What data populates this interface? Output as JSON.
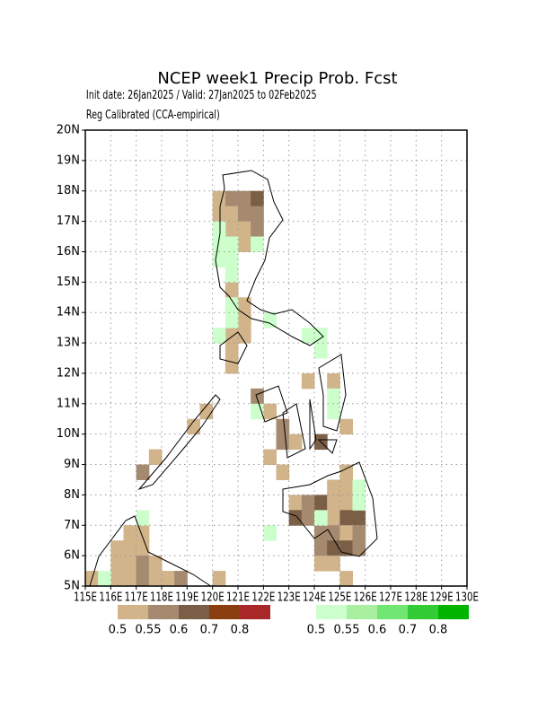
{
  "chart_data": {
    "type": "gridmap",
    "title": "NCEP week1 Precip Prob. Fcst",
    "subtitle": "Init date: 26Jan2025 / Valid: 27Jan2025 to 02Feb2025",
    "subtitle2": "Reg Calibrated (CCA-empirical)",
    "xlim": [
      115,
      130
    ],
    "ylim": [
      5,
      20
    ],
    "grid": true,
    "xticks": [
      {
        "value": 115,
        "label": "115E"
      },
      {
        "value": 116,
        "label": "116E"
      },
      {
        "value": 117,
        "label": "117E"
      },
      {
        "value": 118,
        "label": "118E"
      },
      {
        "value": 119,
        "label": "119E"
      },
      {
        "value": 120,
        "label": "120E"
      },
      {
        "value": 121,
        "label": "121E"
      },
      {
        "value": 122,
        "label": "122E"
      },
      {
        "value": 123,
        "label": "123E"
      },
      {
        "value": 124,
        "label": "124E"
      },
      {
        "value": 125,
        "label": "125E"
      },
      {
        "value": 126,
        "label": "126E"
      },
      {
        "value": 127,
        "label": "127E"
      },
      {
        "value": 128,
        "label": "128E"
      },
      {
        "value": 129,
        "label": "129E"
      },
      {
        "value": 130,
        "label": "130E"
      }
    ],
    "yticks": [
      {
        "value": 5,
        "label": "5N"
      },
      {
        "value": 6,
        "label": "6N"
      },
      {
        "value": 7,
        "label": "7N"
      },
      {
        "value": 8,
        "label": "8N"
      },
      {
        "value": 9,
        "label": "9N"
      },
      {
        "value": 10,
        "label": "10N"
      },
      {
        "value": 11,
        "label": "11N"
      },
      {
        "value": 12,
        "label": "12N"
      },
      {
        "value": 13,
        "label": "13N"
      },
      {
        "value": 14,
        "label": "14N"
      },
      {
        "value": 15,
        "label": "15N"
      },
      {
        "value": 16,
        "label": "16N"
      },
      {
        "value": 17,
        "label": "17N"
      },
      {
        "value": 18,
        "label": "18N"
      },
      {
        "value": 19,
        "label": "19N"
      },
      {
        "value": 20,
        "label": "20N"
      }
    ],
    "dry_colorbar": {
      "colors": [
        "#d2b48a",
        "#a58a70",
        "#7b5e46",
        "#8b3f10",
        "#a8282a"
      ],
      "labels": [
        0.5,
        0.55,
        0.6,
        0.7,
        0.8
      ]
    },
    "wet_colorbar": {
      "colors": [
        "#ccffcc",
        "#a8f0a0",
        "#72e672",
        "#34cc34",
        "#00b400"
      ],
      "labels": [
        0.5,
        0.55,
        0.6,
        0.7,
        0.8
      ]
    },
    "dry_cells": [
      [
        120.25,
        17.75,
        0.5
      ],
      [
        120.75,
        17.75,
        0.55
      ],
      [
        121.25,
        17.75,
        0.55
      ],
      [
        121.75,
        17.75,
        0.6
      ],
      [
        120.25,
        17.25,
        0.5
      ],
      [
        120.75,
        17.25,
        0.5
      ],
      [
        121.25,
        17.25,
        0.55
      ],
      [
        121.75,
        17.25,
        0.55
      ],
      [
        120.75,
        16.75,
        0.5
      ],
      [
        121.25,
        16.75,
        0.5
      ],
      [
        121.75,
        16.75,
        0.55
      ],
      [
        121.25,
        16.25,
        0.5
      ],
      [
        120.75,
        14.75,
        0.5
      ],
      [
        121.25,
        14.25,
        0.5
      ],
      [
        121.25,
        13.75,
        0.5
      ],
      [
        120.75,
        13.25,
        0.5
      ],
      [
        121.25,
        13.25,
        0.5
      ],
      [
        120.75,
        12.75,
        0.5
      ],
      [
        120.75,
        12.25,
        0.5
      ],
      [
        123.75,
        11.75,
        0.5
      ],
      [
        124.75,
        11.75,
        0.5
      ],
      [
        121.75,
        11.25,
        0.55
      ],
      [
        122.25,
        10.75,
        0.5
      ],
      [
        122.75,
        10.25,
        0.55
      ],
      [
        125.25,
        10.25,
        0.5
      ],
      [
        122.75,
        9.75,
        0.55
      ],
      [
        123.25,
        9.75,
        0.5
      ],
      [
        124.25,
        9.75,
        0.6
      ],
      [
        122.25,
        9.25,
        0.5
      ],
      [
        122.75,
        8.75,
        0.5
      ],
      [
        125.25,
        8.75,
        0.5
      ],
      [
        124.75,
        8.25,
        0.5
      ],
      [
        125.25,
        8.25,
        0.5
      ],
      [
        123.25,
        7.75,
        0.5
      ],
      [
        123.75,
        7.75,
        0.55
      ],
      [
        124.25,
        7.75,
        0.6
      ],
      [
        124.75,
        7.75,
        0.5
      ],
      [
        125.25,
        7.75,
        0.5
      ],
      [
        123.25,
        7.25,
        0.6
      ],
      [
        123.75,
        7.25,
        0.55
      ],
      [
        124.75,
        7.25,
        0.5
      ],
      [
        125.25,
        7.25,
        0.6
      ],
      [
        125.75,
        7.25,
        0.6
      ],
      [
        124.25,
        6.75,
        0.55
      ],
      [
        124.75,
        6.75,
        0.55
      ],
      [
        125.25,
        6.75,
        0.5
      ],
      [
        125.75,
        6.75,
        0.55
      ],
      [
        124.25,
        6.25,
        0.55
      ],
      [
        124.75,
        6.25,
        0.6
      ],
      [
        125.25,
        6.25,
        0.6
      ],
      [
        125.75,
        6.25,
        0.55
      ],
      [
        124.25,
        5.75,
        0.5
      ],
      [
        124.75,
        5.75,
        0.5
      ],
      [
        125.25,
        5.25,
        0.5
      ],
      [
        117.75,
        9.25,
        0.5
      ],
      [
        117.25,
        8.75,
        0.55
      ],
      [
        119.25,
        10.25,
        0.5
      ],
      [
        119.75,
        10.75,
        0.5
      ],
      [
        116.75,
        6.75,
        0.5
      ],
      [
        117.25,
        6.75,
        0.5
      ],
      [
        116.25,
        6.25,
        0.5
      ],
      [
        116.75,
        6.25,
        0.5
      ],
      [
        117.25,
        6.25,
        0.5
      ],
      [
        116.25,
        5.75,
        0.5
      ],
      [
        116.75,
        5.75,
        0.5
      ],
      [
        117.25,
        5.75,
        0.55
      ],
      [
        117.75,
        5.75,
        0.5
      ],
      [
        115.25,
        5.25,
        0.5
      ],
      [
        116.25,
        5.25,
        0.5
      ],
      [
        116.75,
        5.25,
        0.5
      ],
      [
        117.25,
        5.25,
        0.55
      ],
      [
        117.75,
        5.25,
        0.5
      ],
      [
        118.25,
        5.25,
        0.5
      ],
      [
        118.75,
        5.25,
        0.55
      ],
      [
        120.25,
        5.25,
        0.5
      ]
    ],
    "wet_cells": [
      [
        120.25,
        16.75,
        0.5
      ],
      [
        120.25,
        16.25,
        0.5
      ],
      [
        120.75,
        16.25,
        0.5
      ],
      [
        121.75,
        16.25,
        0.5
      ],
      [
        120.25,
        15.75,
        0.5
      ],
      [
        120.75,
        15.75,
        0.5
      ],
      [
        120.75,
        15.25,
        0.5
      ],
      [
        120.75,
        14.25,
        0.5
      ],
      [
        120.75,
        13.75,
        0.5
      ],
      [
        122.25,
        13.75,
        0.5
      ],
      [
        120.25,
        13.25,
        0.5
      ],
      [
        123.75,
        13.25,
        0.5
      ],
      [
        124.25,
        13.25,
        0.5
      ],
      [
        124.25,
        12.75,
        0.5
      ],
      [
        124.75,
        11.25,
        0.5
      ],
      [
        121.75,
        10.75,
        0.5
      ],
      [
        124.75,
        10.75,
        0.5
      ],
      [
        125.75,
        8.25,
        0.5
      ],
      [
        125.75,
        7.75,
        0.5
      ],
      [
        124.25,
        7.25,
        0.5
      ],
      [
        122.25,
        6.75,
        0.5
      ],
      [
        117.25,
        7.25,
        0.5
      ],
      [
        115.75,
        5.25,
        0.5
      ]
    ]
  }
}
